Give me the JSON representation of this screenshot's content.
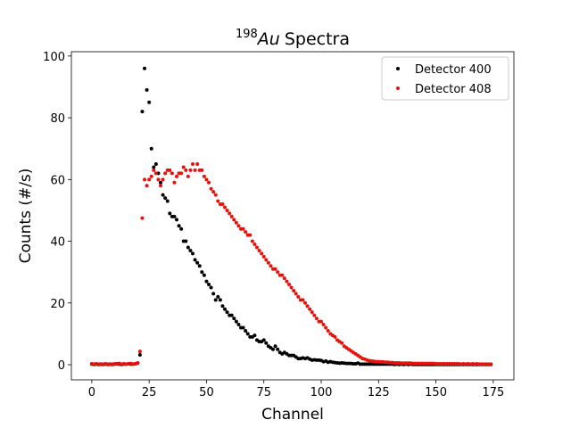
{
  "chart_data": {
    "type": "scatter",
    "title": {
      "superscript": "198",
      "italic": "Au",
      "text": "Spectra"
    },
    "x_label": "Channel",
    "y_label": "Counts (#/s)",
    "xlim": [
      -8.9,
      184
    ],
    "ylim": [
      -4.9,
      101.4
    ],
    "xticks": [
      0,
      25,
      50,
      75,
      100,
      125,
      150,
      175
    ],
    "yticks": [
      0,
      20,
      40,
      60,
      80,
      100
    ],
    "grid": false,
    "legend": "upper right",
    "x": [
      0,
      1,
      2,
      3,
      4,
      5,
      6,
      7,
      8,
      9,
      10,
      11,
      12,
      13,
      14,
      15,
      16,
      17,
      18,
      19,
      20,
      21,
      22,
      23,
      24,
      25,
      26,
      27,
      28,
      29,
      30,
      31,
      32,
      33,
      34,
      35,
      36,
      37,
      38,
      39,
      40,
      41,
      42,
      43,
      44,
      45,
      46,
      47,
      48,
      49,
      50,
      51,
      52,
      53,
      54,
      55,
      56,
      57,
      58,
      59,
      60,
      61,
      62,
      63,
      64,
      65,
      66,
      67,
      68,
      69,
      70,
      71,
      72,
      73,
      74,
      75,
      76,
      77,
      78,
      79,
      80,
      81,
      82,
      83,
      84,
      85,
      86,
      87,
      88,
      89,
      90,
      91,
      92,
      93,
      94,
      95,
      96,
      97,
      98,
      99,
      100,
      101,
      102,
      103,
      104,
      105,
      106,
      107,
      108,
      109,
      110,
      111,
      112,
      113,
      114,
      115,
      116,
      117,
      118,
      119,
      120,
      121,
      122,
      123,
      124,
      125,
      126,
      127,
      128,
      129,
      130,
      131,
      132,
      133,
      134,
      135,
      136,
      137,
      138,
      139,
      140,
      141,
      142,
      143,
      144,
      145,
      146,
      147,
      148,
      149,
      150,
      151,
      152,
      153,
      154,
      155,
      156,
      157,
      158,
      159,
      160,
      161,
      162,
      163,
      164,
      165,
      166,
      167,
      168,
      169,
      170,
      171,
      172,
      173,
      174
    ],
    "series": [
      {
        "name": "Detector 400",
        "color": "#000000",
        "values": [
          0.2,
          0.1,
          0.2,
          0.1,
          0.2,
          0.1,
          0.2,
          0.1,
          0.2,
          0.1,
          0.2,
          0.3,
          0.2,
          0.1,
          0.2,
          0.2,
          0.3,
          0.2,
          0.2,
          0.3,
          0.5,
          3.2,
          82,
          96,
          89,
          85,
          70,
          64,
          65,
          62,
          59,
          55,
          54,
          53,
          49,
          48,
          48,
          47,
          45,
          44,
          40,
          40,
          38,
          37,
          36,
          34,
          33,
          32,
          30,
          29,
          27,
          26,
          25,
          23,
          21,
          22,
          21,
          19,
          18,
          17,
          16,
          16,
          15,
          14,
          13,
          12,
          12,
          11,
          10,
          9,
          9,
          9.5,
          8,
          7.5,
          7.5,
          8,
          7,
          6,
          5.5,
          5,
          6,
          5,
          4,
          3.5,
          4,
          3.5,
          3,
          3,
          3,
          2.5,
          2,
          2,
          2.2,
          2,
          2.2,
          1.8,
          1.5,
          1.6,
          1.5,
          1.5,
          1.4,
          1,
          1.2,
          0.8,
          1,
          0.8,
          0.7,
          0.6,
          0.5,
          0.6,
          0.5,
          0.4,
          0.4,
          0.4,
          0.3,
          0.3,
          0.5,
          0.2,
          0.2,
          0.2,
          0.2,
          0.2,
          0.2,
          0.2,
          0.2,
          0.2,
          0.2,
          0.2,
          0.2,
          0.2,
          0.2,
          0.2,
          0.1,
          0.2,
          0.1,
          0.2,
          0.1,
          0.2,
          0.1,
          0.2,
          0.1,
          0.1,
          0.1,
          0.1,
          0.1,
          0.1,
          0.1,
          0.1,
          0.1,
          0.1,
          0.1,
          0.1,
          0.1,
          0.1,
          0.1,
          0.1,
          0.1,
          0.1,
          0.1,
          0.1,
          0.1,
          0.1,
          0.1,
          0.1,
          0.1,
          0.1,
          0.1,
          0.1,
          0.1,
          0.1,
          0.1,
          0.1,
          0.1,
          0.1,
          0.1
        ]
      },
      {
        "name": "Detector 408",
        "color": "#e8120c",
        "values": [
          0.3,
          0.2,
          0.3,
          0.2,
          0.1,
          0.2,
          0.3,
          0.2,
          0.1,
          0.2,
          0.3,
          0.2,
          0.4,
          0.2,
          0.3,
          0.2,
          0.3,
          0.4,
          0.2,
          0.3,
          0.6,
          4.3,
          47.5,
          60,
          58,
          60,
          61,
          63,
          62,
          60,
          58,
          60,
          62,
          63,
          63,
          62,
          59,
          61,
          62,
          62,
          64,
          63,
          61,
          63,
          65,
          63,
          65,
          63,
          63,
          61,
          60,
          59,
          57,
          56,
          55,
          53,
          52,
          52,
          51,
          50,
          49,
          48,
          47,
          46,
          45,
          44,
          44,
          43,
          42,
          42,
          40,
          39,
          38,
          37,
          36,
          35,
          34,
          33,
          32,
          31,
          31,
          30,
          29,
          29,
          28,
          27,
          26,
          25,
          24,
          23,
          22,
          21,
          21,
          20,
          19,
          18,
          17,
          16,
          15,
          14,
          14,
          13,
          12,
          11,
          10,
          9.5,
          9,
          8,
          7.5,
          7,
          6,
          5.5,
          5,
          4.5,
          4,
          3.5,
          3,
          2.5,
          2,
          1.8,
          1.5,
          1.3,
          1.2,
          1.1,
          1,
          1,
          0.9,
          0.9,
          0.8,
          0.8,
          0.7,
          0.7,
          0.6,
          0.6,
          0.6,
          0.5,
          0.5,
          0.5,
          0.5,
          0.5,
          0.4,
          0.4,
          0.4,
          0.4,
          0.4,
          0.4,
          0.4,
          0.4,
          0.4,
          0.4,
          0.3,
          0.3,
          0.3,
          0.3,
          0.3,
          0.3,
          0.3,
          0.3,
          0.3,
          0.3,
          0.3,
          0.2,
          0.3,
          0.2,
          0.3,
          0.2,
          0.3,
          0.2,
          0.3,
          0.2,
          0.2,
          0.2,
          0.2,
          0.2,
          0.2
        ]
      }
    ]
  }
}
